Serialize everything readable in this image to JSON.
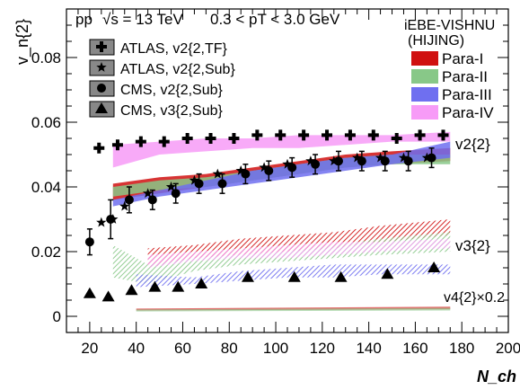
{
  "header": {
    "system": "pp",
    "energy_text": "√s = 13 TeV",
    "pt_text": "0.3 < pT < 3.0 GeV",
    "model_name": "iEBE-VISHNU",
    "model_sub": "(HIJING)"
  },
  "colors": {
    "para_1": "#d01010",
    "para_2": "#88c888",
    "para_3": "#6f6ff0",
    "para_4": "#f79bf7"
  },
  "chart_data": {
    "type": "scatter",
    "xlabel": "N_ch",
    "ylabel": "v_n{2}",
    "xlim": [
      10,
      200
    ],
    "ylim": [
      -0.005,
      0.095
    ],
    "x_ticks": [
      20,
      40,
      60,
      80,
      100,
      120,
      140,
      160,
      180,
      200
    ],
    "y_ticks": [
      0,
      0.02,
      0.04,
      0.06,
      0.08
    ],
    "grid": false,
    "legend_position": "top-left",
    "band_labels": [
      "v2{2}",
      "v3{2}",
      "v4{2}×0.2"
    ],
    "experiment_series": [
      {
        "name": "ATLAS, v2{2,TF}",
        "marker": "plus",
        "x": [
          24,
          32,
          42,
          52,
          62,
          72,
          82,
          92,
          102,
          112,
          122,
          132,
          142,
          152,
          162,
          172
        ],
        "y": [
          0.052,
          0.053,
          0.054,
          0.054,
          0.055,
          0.055,
          0.055,
          0.056,
          0.056,
          0.056,
          0.056,
          0.056,
          0.056,
          0.055,
          0.056,
          0.056
        ],
        "err": [
          0,
          0,
          0,
          0,
          0,
          0,
          0,
          0,
          0,
          0,
          0,
          0,
          0,
          0,
          0,
          0
        ]
      },
      {
        "name": "ATLAS, v2{2,Sub}",
        "marker": "star",
        "x": [
          25,
          30,
          35,
          45,
          55,
          65,
          75,
          85,
          95,
          105,
          115,
          125,
          135,
          145,
          155,
          165
        ],
        "y": [
          0.029,
          0.03,
          0.034,
          0.038,
          0.04,
          0.042,
          0.044,
          0.045,
          0.046,
          0.047,
          0.048,
          0.048,
          0.049,
          0.049,
          0.049,
          0.049
        ],
        "err": [
          0,
          0,
          0,
          0,
          0,
          0,
          0,
          0,
          0,
          0,
          0,
          0,
          0,
          0,
          0,
          0
        ]
      },
      {
        "name": "CMS, v2{2,Sub}",
        "marker": "circle",
        "x": [
          20,
          29,
          37,
          47,
          57,
          67,
          77,
          87,
          97,
          107,
          117,
          127,
          137,
          147,
          157,
          167
        ],
        "y": [
          0.023,
          0.03,
          0.036,
          0.036,
          0.038,
          0.041,
          0.041,
          0.044,
          0.045,
          0.046,
          0.047,
          0.048,
          0.048,
          0.048,
          0.048,
          0.049
        ],
        "err": [
          0.004,
          0.006,
          0.004,
          0.003,
          0.003,
          0.003,
          0.003,
          0.003,
          0.003,
          0.003,
          0.003,
          0.003,
          0.003,
          0.003,
          0.003,
          0.003
        ]
      },
      {
        "name": "CMS, v3{2,Sub}",
        "marker": "triangle",
        "x": [
          20,
          28,
          38,
          48,
          58,
          68,
          88,
          108,
          128,
          148,
          168
        ],
        "y": [
          0.007,
          0.006,
          0.008,
          0.009,
          0.009,
          0.01,
          0.012,
          0.012,
          0.012,
          0.013,
          0.015
        ],
        "err": [
          0,
          0,
          0,
          0,
          0,
          0,
          0,
          0,
          0,
          0,
          0
        ]
      }
    ],
    "model_bands": [
      {
        "name": "Para-I",
        "color_key": "para_1",
        "style": "solid",
        "x": [
          30,
          50,
          70,
          90,
          110,
          130,
          150,
          175
        ],
        "y_low": [
          0.036,
          0.038,
          0.04,
          0.042,
          0.044,
          0.046,
          0.047,
          0.048
        ],
        "y_high": [
          0.041,
          0.043,
          0.044,
          0.046,
          0.048,
          0.05,
          0.051,
          0.052
        ]
      },
      {
        "name": "Para-II",
        "color_key": "para_2",
        "style": "solid",
        "x": [
          30,
          50,
          70,
          90,
          110,
          130,
          150,
          175
        ],
        "y_low": [
          0.037,
          0.039,
          0.04,
          0.042,
          0.044,
          0.046,
          0.047,
          0.047
        ],
        "y_high": [
          0.04,
          0.042,
          0.043,
          0.045,
          0.047,
          0.049,
          0.05,
          0.05
        ]
      },
      {
        "name": "Para-III",
        "color_key": "para_3",
        "style": "solid",
        "x": [
          30,
          50,
          70,
          90,
          110,
          130,
          150,
          175
        ],
        "y_low": [
          0.034,
          0.037,
          0.039,
          0.041,
          0.043,
          0.045,
          0.047,
          0.049
        ],
        "y_high": [
          0.036,
          0.039,
          0.042,
          0.045,
          0.047,
          0.049,
          0.05,
          0.054
        ]
      },
      {
        "name": "Para-IV",
        "color_key": "para_4",
        "style": "solid",
        "x": [
          30,
          50,
          70,
          90,
          110,
          130,
          150,
          175
        ],
        "y_low": [
          0.046,
          0.05,
          0.051,
          0.052,
          0.052,
          0.053,
          0.054,
          0.054
        ],
        "y_high": [
          0.053,
          0.054,
          0.055,
          0.055,
          0.056,
          0.056,
          0.056,
          0.057
        ]
      }
    ],
    "v3_bands": [
      {
        "name": "Para-I",
        "color_key": "para_1",
        "x": [
          45,
          65,
          85,
          105,
          125,
          145,
          175
        ],
        "y_low": [
          0.015,
          0.018,
          0.019,
          0.02,
          0.021,
          0.023,
          0.025
        ],
        "y_high": [
          0.021,
          0.022,
          0.024,
          0.025,
          0.026,
          0.028,
          0.03
        ]
      },
      {
        "name": "Para-II",
        "color_key": "para_2",
        "x": [
          30,
          45,
          65,
          85,
          105,
          125,
          145,
          175
        ],
        "y_low": [
          0.012,
          0.01,
          0.014,
          0.016,
          0.017,
          0.018,
          0.019,
          0.02
        ],
        "y_high": [
          0.022,
          0.016,
          0.018,
          0.019,
          0.02,
          0.022,
          0.024,
          0.026
        ]
      },
      {
        "name": "Para-III",
        "color_key": "para_3",
        "x": [
          40,
          65,
          85,
          105,
          125,
          145,
          175
        ],
        "y_low": [
          0.009,
          0.01,
          0.011,
          0.012,
          0.012,
          0.013,
          0.013
        ],
        "y_high": [
          0.013,
          0.012,
          0.014,
          0.015,
          0.016,
          0.016,
          0.016
        ]
      },
      {
        "name": "Para-IV",
        "color_key": "para_4",
        "x": [
          45,
          65,
          85,
          105,
          125,
          145,
          175
        ],
        "y_low": [
          0.015,
          0.017,
          0.018,
          0.018,
          0.019,
          0.02,
          0.021
        ],
        "y_high": [
          0.019,
          0.02,
          0.021,
          0.022,
          0.023,
          0.023,
          0.024
        ]
      }
    ],
    "v4_bands": [
      {
        "name": "Para-I",
        "color_key": "para_1",
        "x": [
          40,
          175
        ],
        "y_low": [
          0.0018,
          0.0022
        ],
        "y_high": [
          0.0024,
          0.003
        ]
      },
      {
        "name": "Para-II",
        "color_key": "para_2",
        "x": [
          40,
          175
        ],
        "y_low": [
          0.0015,
          0.0018
        ],
        "y_high": [
          0.0021,
          0.0026
        ]
      }
    ]
  }
}
